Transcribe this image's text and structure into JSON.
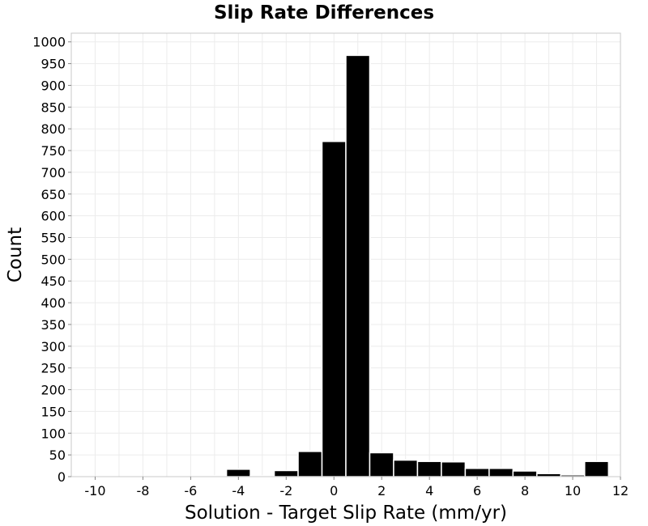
{
  "chart_data": {
    "type": "bar",
    "title": "Slip Rate Differences",
    "xlabel": "Solution - Target Slip Rate (mm/yr)",
    "ylabel": "Count",
    "xlim": [
      -11,
      12
    ],
    "ylim": [
      0,
      1020
    ],
    "xticks": [
      -10,
      -8,
      -6,
      -4,
      -2,
      0,
      2,
      4,
      6,
      8,
      10,
      12
    ],
    "yticks": [
      0,
      50,
      100,
      150,
      200,
      250,
      300,
      350,
      400,
      450,
      500,
      550,
      600,
      650,
      700,
      750,
      800,
      850,
      900,
      950,
      1000
    ],
    "grid": true,
    "bar_width": 1,
    "bars": [
      {
        "x": -10,
        "value": 0
      },
      {
        "x": -9,
        "value": 0
      },
      {
        "x": -8,
        "value": 0
      },
      {
        "x": -7,
        "value": 0
      },
      {
        "x": -6,
        "value": 0
      },
      {
        "x": -5,
        "value": 2
      },
      {
        "x": -4,
        "value": 17
      },
      {
        "x": -3,
        "value": 2
      },
      {
        "x": -2,
        "value": 14
      },
      {
        "x": -1,
        "value": 58
      },
      {
        "x": 0,
        "value": 771
      },
      {
        "x": 1,
        "value": 969
      },
      {
        "x": 2,
        "value": 55
      },
      {
        "x": 3,
        "value": 38
      },
      {
        "x": 4,
        "value": 35
      },
      {
        "x": 5,
        "value": 34
      },
      {
        "x": 6,
        "value": 19
      },
      {
        "x": 7,
        "value": 19
      },
      {
        "x": 8,
        "value": 13
      },
      {
        "x": 9,
        "value": 7
      },
      {
        "x": 10,
        "value": 4
      },
      {
        "x": 11,
        "value": 35
      }
    ],
    "colors": {
      "bar": "#000000",
      "bar_edge": "#ffffff",
      "grid": "#ececec",
      "frame": "#c8c8c8"
    }
  }
}
